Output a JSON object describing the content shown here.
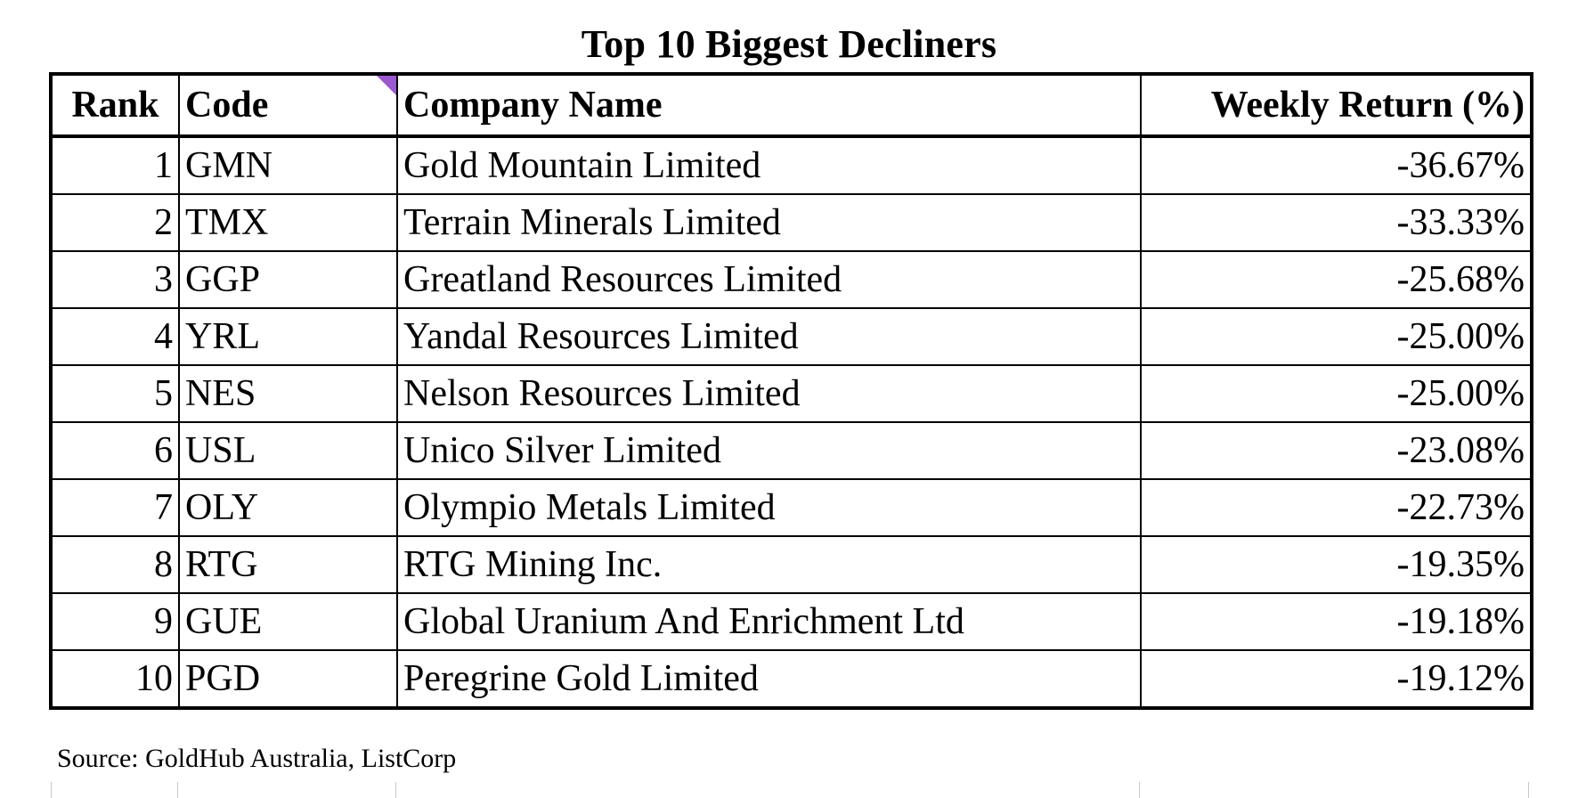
{
  "title": "Top 10 Biggest Decliners",
  "table": {
    "headers": {
      "rank": "Rank",
      "code": "Code",
      "name": "Company Name",
      "return": "Weekly Return (%)"
    },
    "rows": [
      {
        "rank": "1",
        "code": "GMN",
        "name": "Gold Mountain Limited",
        "return": "-36.67%"
      },
      {
        "rank": "2",
        "code": "TMX",
        "name": "Terrain Minerals Limited",
        "return": "-33.33%"
      },
      {
        "rank": "3",
        "code": "GGP",
        "name": "Greatland Resources Limited",
        "return": "-25.68%"
      },
      {
        "rank": "4",
        "code": "YRL",
        "name": "Yandal Resources Limited",
        "return": "-25.00%"
      },
      {
        "rank": "5",
        "code": "NES",
        "name": "Nelson Resources Limited",
        "return": "-25.00%"
      },
      {
        "rank": "6",
        "code": "USL",
        "name": "Unico Silver Limited",
        "return": "-23.08%"
      },
      {
        "rank": "7",
        "code": "OLY",
        "name": "Olympio Metals Limited",
        "return": "-22.73%"
      },
      {
        "rank": "8",
        "code": "RTG",
        "name": "RTG Mining Inc.",
        "return": "-19.35%"
      },
      {
        "rank": "9",
        "code": "GUE",
        "name": "Global Uranium And Enrichment Ltd",
        "return": "-19.18%"
      },
      {
        "rank": "10",
        "code": "PGD",
        "name": "Peregrine Gold Limited",
        "return": "-19.12%"
      }
    ]
  },
  "source": "Source: GoldHub Australia, ListCorp",
  "colors": {
    "comment_marker": "#9b59d0",
    "border": "#000000",
    "faint_gridline": "#c8c8c8"
  }
}
